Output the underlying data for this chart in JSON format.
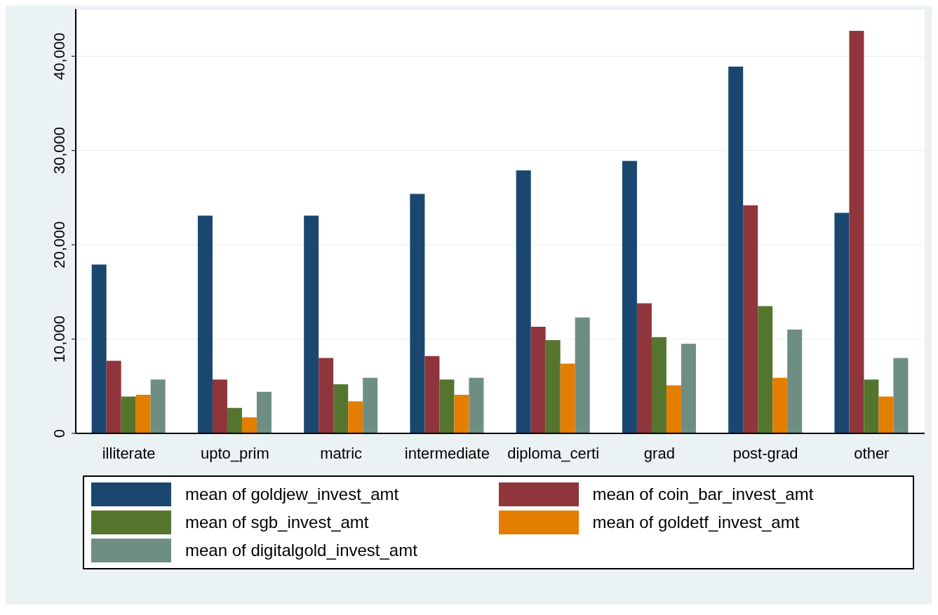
{
  "chart_data": {
    "type": "bar",
    "categories": [
      "illiterate",
      "upto_prim",
      "matric",
      "intermediate",
      "diploma_certi",
      "grad",
      "post-grad",
      "other"
    ],
    "series": [
      {
        "name": "mean of goldjew_invest_amt",
        "color": "#1a476f",
        "values": [
          17900,
          23100,
          23100,
          25400,
          27900,
          28900,
          38900,
          23400
        ]
      },
      {
        "name": "mean of coin_bar_invest_amt",
        "color": "#90353b",
        "values": [
          7700,
          5700,
          8000,
          8200,
          11300,
          13800,
          24200,
          42700
        ]
      },
      {
        "name": "mean of sgb_invest_amt",
        "color": "#55752f",
        "values": [
          3900,
          2700,
          5200,
          5700,
          9900,
          10200,
          13500,
          5700
        ]
      },
      {
        "name": "mean of goldetf_invest_amt",
        "color": "#e37e00",
        "values": [
          4100,
          1700,
          3400,
          4100,
          7400,
          5100,
          5900,
          3900
        ]
      },
      {
        "name": "mean of digitalgold_invest_amt",
        "color": "#6e8e84",
        "values": [
          5700,
          4400,
          5900,
          5900,
          12300,
          9500,
          11000,
          8000
        ]
      }
    ],
    "ylim": [
      0,
      45000
    ],
    "yticks": [
      0,
      {
        "value": 10000,
        "label": "10,000"
      },
      {
        "value": 20000,
        "label": "20,000"
      },
      {
        "value": 30000,
        "label": "30,000"
      },
      {
        "value": 40000,
        "label": "40,000"
      }
    ],
    "grid": "y",
    "legend": "bottom"
  }
}
